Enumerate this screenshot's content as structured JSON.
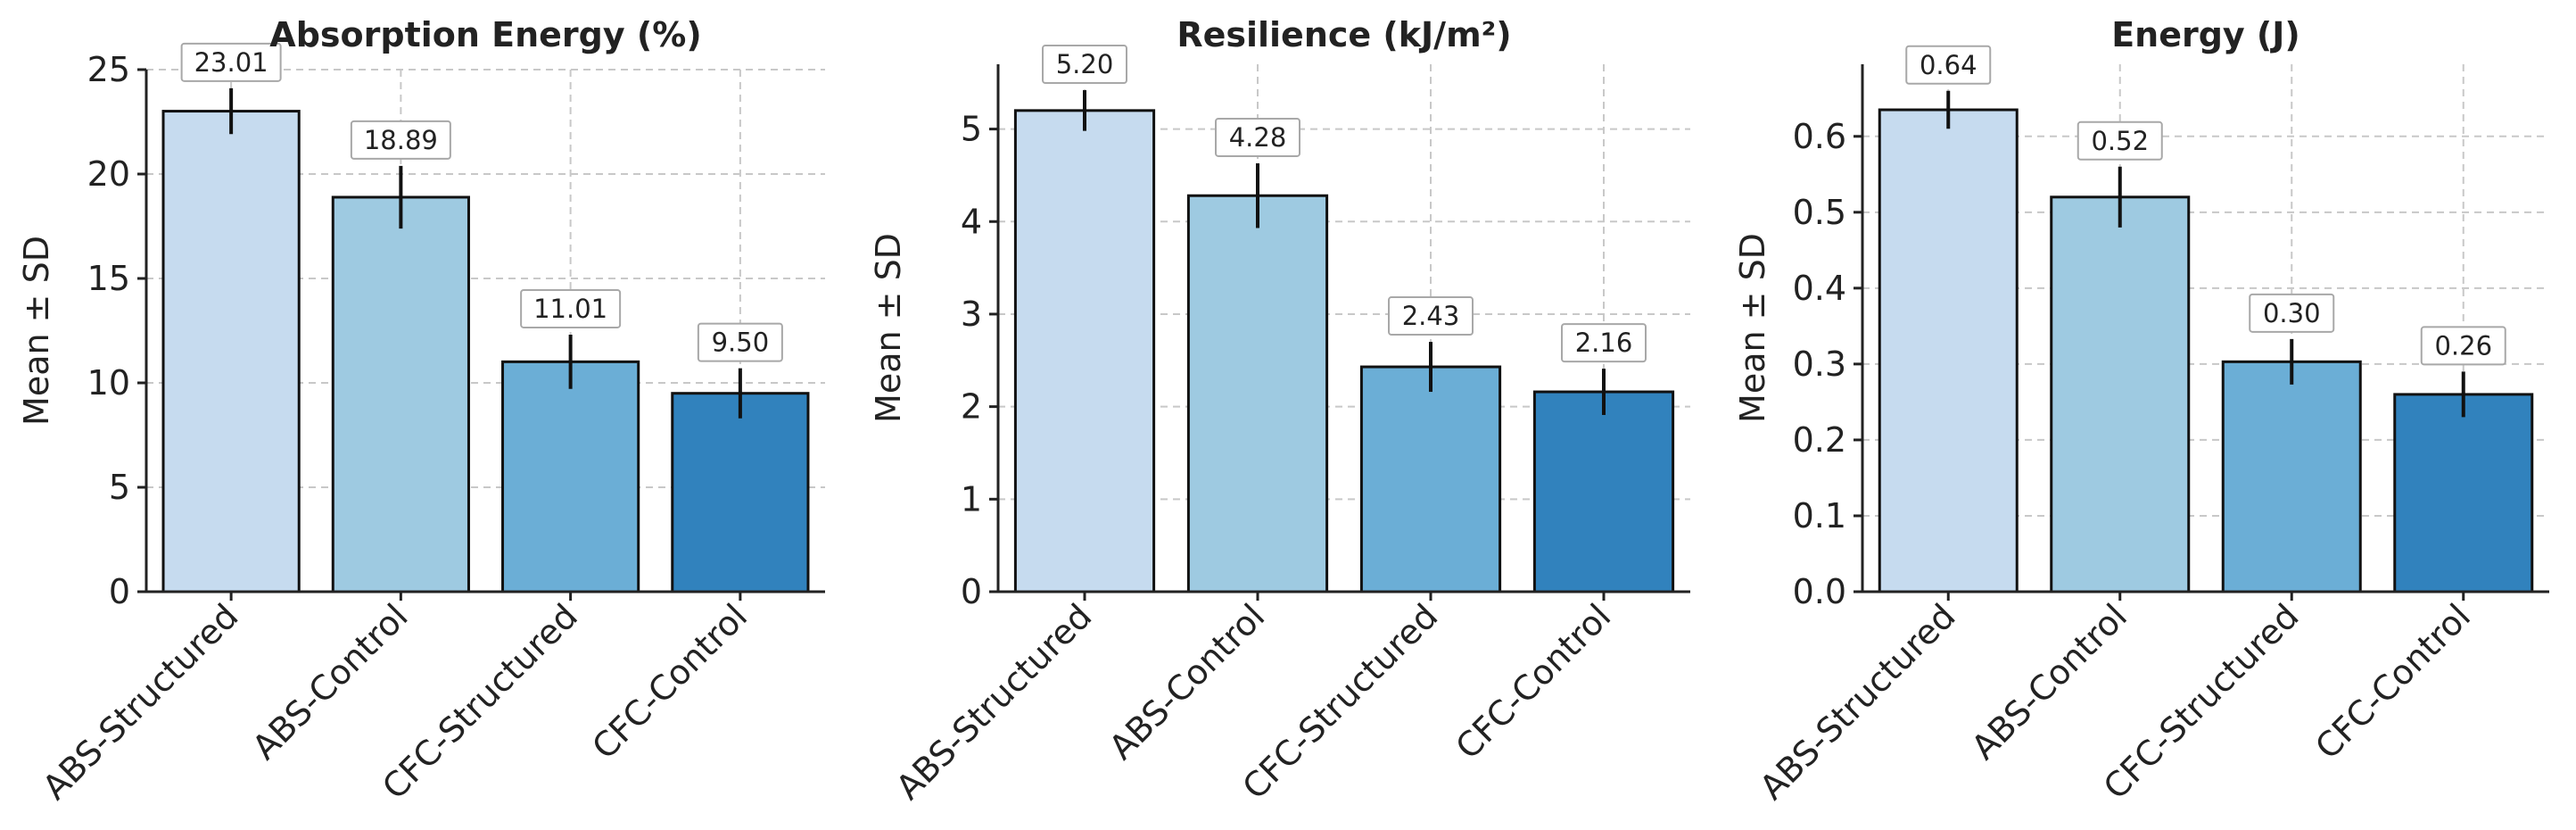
{
  "chart_data": [
    {
      "type": "bar",
      "title": "Absorption Energy (%)",
      "xlabel": "",
      "ylabel": "Mean ± SD",
      "categories": [
        "ABS-Structured",
        "ABS-Control",
        "CFC-Structured",
        "CFC-Control"
      ],
      "values": [
        23.01,
        18.89,
        11.01,
        9.5
      ],
      "value_labels": [
        "23.01",
        "18.89",
        "11.01",
        "9.50"
      ],
      "errors": [
        1.1,
        1.5,
        1.3,
        1.2
      ],
      "ylim": [
        0,
        25
      ],
      "yticks": [
        0,
        5,
        10,
        15,
        20,
        25
      ],
      "ytick_labels": [
        "0",
        "5",
        "10",
        "15",
        "20",
        "25"
      ],
      "grid": true
    },
    {
      "type": "bar",
      "title": "Resilience (kJ/m²)",
      "xlabel": "",
      "ylabel": "Mean ± SD",
      "categories": [
        "ABS-Structured",
        "ABS-Control",
        "CFC-Structured",
        "CFC-Control"
      ],
      "values": [
        5.2,
        4.28,
        2.43,
        2.16
      ],
      "value_labels": [
        "5.20",
        "4.28",
        "2.43",
        "2.16"
      ],
      "errors": [
        0.22,
        0.35,
        0.27,
        0.25
      ],
      "ylim": [
        0,
        5.7
      ],
      "yticks": [
        0,
        1,
        2,
        3,
        4,
        5
      ],
      "ytick_labels": [
        "0",
        "1",
        "2",
        "3",
        "4",
        "5"
      ],
      "grid": true
    },
    {
      "type": "bar",
      "title": "Energy (J)",
      "xlabel": "",
      "ylabel": "Mean ± SD",
      "categories": [
        "ABS-Structured",
        "ABS-Control",
        "CFC-Structured",
        "CFC-Control"
      ],
      "values": [
        0.635,
        0.52,
        0.303,
        0.26
      ],
      "value_labels": [
        "0.64",
        "0.52",
        "0.30",
        "0.26"
      ],
      "errors": [
        0.025,
        0.04,
        0.03,
        0.03
      ],
      "ylim": [
        0,
        0.695
      ],
      "yticks": [
        0,
        0.1,
        0.2,
        0.3,
        0.4,
        0.5,
        0.6
      ],
      "ytick_labels": [
        "0.0",
        "0.1",
        "0.2",
        "0.3",
        "0.4",
        "0.5",
        "0.6"
      ],
      "grid": true
    }
  ],
  "colors": {
    "bars": [
      "#c6dbef",
      "#9ecae1",
      "#6baed6",
      "#3182bd"
    ],
    "grid": "#c8c8c8",
    "axis": "#222222",
    "label_box_border": "#a8a8a8",
    "label_box_fill": "#ffffff"
  }
}
